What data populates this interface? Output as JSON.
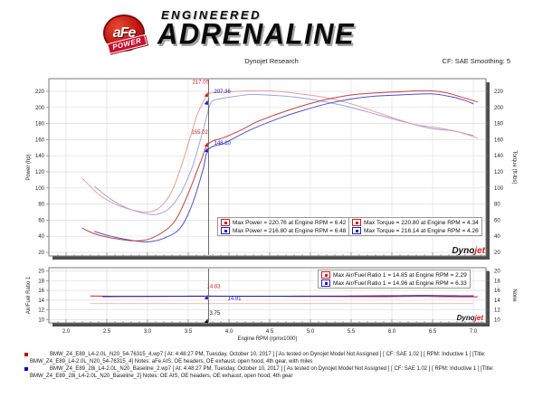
{
  "header": {
    "logo_brand": "aFe",
    "logo_sub": "POWER",
    "tagline_top": "ENGINEERED",
    "tagline_main": "ADRENALINE"
  },
  "toolbar": {
    "center_title": "Dynojet Research",
    "right_label": "CF: SAE Smoothing: 5"
  },
  "branding": {
    "dynojet_black": "Dyno",
    "dynojet_red": "jet",
    "dynojet_sub": "R E S E A R C H"
  },
  "colors": {
    "run1": "#cc2020",
    "run2": "#2020bb",
    "power_afe": "#c24040",
    "power_base": "#5050c8",
    "torque_afe": "#e59e9e",
    "torque_base": "#a0a4e0",
    "afr_ref": "#f0bcbc",
    "cursor": "#4a4a4a",
    "grid": "#dedede",
    "frame": "#7a7a7a",
    "shadow": "#4d4d4d"
  },
  "chart_data": [
    {
      "type": "line",
      "title": "",
      "xlabel": "Engine RPM (rpmx1000)",
      "ylabel_left": "Power (hp)",
      "ylabel_right": "Torque (ft-lbs)",
      "xlim": [
        1.8,
        7.15
      ],
      "ylim": [
        10,
        236
      ],
      "xticks": [
        2.0,
        2.5,
        3.0,
        3.5,
        4.0,
        4.5,
        5.0,
        5.5,
        6.0,
        6.5,
        7.0
      ],
      "yticks": [
        20,
        40,
        60,
        80,
        100,
        120,
        140,
        160,
        180,
        200,
        220
      ],
      "grid": true,
      "legend_position": "bottom-center",
      "series": [
        {
          "name": "torque_baseline",
          "color_key": "torque_base",
          "points": [
            [
              2.35,
              102
            ],
            [
              2.55,
              86
            ],
            [
              2.75,
              75
            ],
            [
              2.95,
              68.5
            ],
            [
              3.1,
              67
            ],
            [
              3.25,
              73
            ],
            [
              3.4,
              92
            ],
            [
              3.55,
              126
            ],
            [
              3.65,
              160
            ],
            [
              3.72,
              186
            ],
            [
              3.78,
              206
            ],
            [
              3.9,
              211
            ],
            [
              4.1,
              214
            ],
            [
              4.26,
              216.1
            ],
            [
              4.5,
              215.3
            ],
            [
              4.8,
              213
            ],
            [
              5.1,
              208.5
            ],
            [
              5.4,
              202.5
            ],
            [
              5.7,
              194.5
            ],
            [
              6.0,
              186
            ],
            [
              6.25,
              179.5
            ],
            [
              6.5,
              173.5
            ],
            [
              6.75,
              171
            ],
            [
              7.0,
              165
            ]
          ]
        },
        {
          "name": "torque_afe",
          "color_key": "torque_afe",
          "points": [
            [
              2.2,
              112
            ],
            [
              2.4,
              92
            ],
            [
              2.6,
              80
            ],
            [
              2.8,
              73
            ],
            [
              3.0,
              70
            ],
            [
              3.15,
              76
            ],
            [
              3.3,
              96
            ],
            [
              3.45,
              138
            ],
            [
              3.6,
              188
            ],
            [
              3.7,
              210
            ],
            [
              3.75,
              217.1
            ],
            [
              3.9,
              219
            ],
            [
              4.1,
              220
            ],
            [
              4.34,
              220.8
            ],
            [
              4.6,
              220
            ],
            [
              4.9,
              216.5
            ],
            [
              5.2,
              212
            ],
            [
              5.5,
              204.5
            ],
            [
              5.8,
              194.5
            ],
            [
              6.05,
              186
            ],
            [
              6.3,
              178.5
            ],
            [
              6.55,
              175
            ],
            [
              6.8,
              170
            ],
            [
              7.05,
              162
            ]
          ]
        },
        {
          "name": "power_baseline",
          "color_key": "power_base",
          "points": [
            [
              2.35,
              46
            ],
            [
              2.55,
              40
            ],
            [
              2.8,
              35
            ],
            [
              3.0,
              33
            ],
            [
              3.2,
              37.5
            ],
            [
              3.4,
              50
            ],
            [
              3.55,
              80
            ],
            [
              3.68,
              122
            ],
            [
              3.75,
              148
            ],
            [
              3.95,
              156
            ],
            [
              4.26,
              172
            ],
            [
              4.6,
              186
            ],
            [
              4.9,
              196
            ],
            [
              5.2,
              204.5
            ],
            [
              5.5,
              210.5
            ],
            [
              5.8,
              214
            ],
            [
              6.1,
              215.5
            ],
            [
              6.48,
              216.8
            ],
            [
              6.72,
              213.5
            ],
            [
              6.9,
              208.5
            ],
            [
              7.0,
              204.5
            ]
          ]
        },
        {
          "name": "power_afe",
          "color_key": "power_afe",
          "points": [
            [
              2.2,
              50
            ],
            [
              2.35,
              43
            ],
            [
              2.55,
              38
            ],
            [
              2.8,
              34.5
            ],
            [
              3.0,
              36
            ],
            [
              3.2,
              46
            ],
            [
              3.35,
              61
            ],
            [
              3.5,
              93
            ],
            [
              3.65,
              132
            ],
            [
              3.75,
              155
            ],
            [
              3.95,
              163
            ],
            [
              4.15,
              172
            ],
            [
              4.34,
              182
            ],
            [
              4.6,
              192
            ],
            [
              4.9,
              202
            ],
            [
              5.2,
              210
            ],
            [
              5.5,
              215.5
            ],
            [
              5.8,
              218
            ],
            [
              6.1,
              219.5
            ],
            [
              6.42,
              220.8
            ],
            [
              6.65,
              218.5
            ],
            [
              6.85,
              213
            ],
            [
              7.05,
              207
            ]
          ]
        }
      ],
      "cursor": {
        "rpm": 3.75,
        "readouts": [
          {
            "label": "217.05",
            "value": 217.05,
            "color_key": "run1"
          },
          {
            "label": "207.36",
            "value": 207.36,
            "color_key": "run2"
          },
          {
            "label": "155.02",
            "value": 155.02,
            "color_key": "run1"
          },
          {
            "label": "148.10",
            "value": 148.1,
            "color_key": "run2"
          }
        ]
      },
      "legends": [
        {
          "rows": [
            {
              "color_key": "run1",
              "text": "Max Power = 220.76 at Engine RPM = 6.42"
            },
            {
              "color_key": "run2",
              "text": "Max Power = 216.80 at Engine RPM = 6.48"
            }
          ]
        },
        {
          "rows": [
            {
              "color_key": "run1",
              "text": "Max Torque = 220.80 at Engine RPM = 4.34"
            },
            {
              "color_key": "run2",
              "text": "Max Torque = 216.14 at Engine RPM = 4.26"
            }
          ]
        }
      ]
    },
    {
      "type": "line",
      "title": "",
      "xlabel": "Engine RPM (rpmx1000)",
      "ylabel_left": "Air/Fuel Ratio 1",
      "ylabel_right": "None",
      "xlim": [
        1.8,
        7.15
      ],
      "ylim": [
        9.3,
        20.6
      ],
      "xticks": [
        2.0,
        2.5,
        3.0,
        3.5,
        4.0,
        4.5,
        5.0,
        5.5,
        6.0,
        6.5,
        7.0
      ],
      "yticks": [
        10,
        12,
        14,
        16,
        18,
        20
      ],
      "grid": true,
      "legend_position": "top-right",
      "series": [
        {
          "name": "afr_reference",
          "color_key": "afr_ref",
          "points": [
            [
              2.3,
              13.3
            ],
            [
              7.0,
              13.3
            ]
          ]
        },
        {
          "name": "afr_afe",
          "color_key": "run1",
          "points": [
            [
              2.3,
              14.85
            ],
            [
              2.6,
              14.8
            ],
            [
              3.0,
              14.8
            ],
            [
              3.4,
              14.82
            ],
            [
              3.75,
              14.83
            ],
            [
              4.2,
              14.8
            ],
            [
              4.8,
              14.78
            ],
            [
              5.4,
              14.75
            ],
            [
              5.9,
              14.73
            ],
            [
              6.33,
              14.8
            ],
            [
              6.7,
              14.72
            ],
            [
              7.05,
              14.7
            ]
          ]
        },
        {
          "name": "afr_baseline",
          "color_key": "run2",
          "points": [
            [
              2.45,
              14.72
            ],
            [
              2.8,
              14.77
            ],
            [
              3.2,
              14.79
            ],
            [
              3.75,
              14.81
            ],
            [
              4.3,
              14.82
            ],
            [
              4.9,
              14.83
            ],
            [
              5.5,
              14.86
            ],
            [
              5.95,
              14.9
            ],
            [
              6.33,
              14.96
            ],
            [
              6.7,
              14.9
            ],
            [
              7.0,
              14.88
            ]
          ]
        }
      ],
      "cursor": {
        "rpm": 3.75,
        "rpm_label": "3.75",
        "readouts": [
          {
            "label": "14.83",
            "value": 14.83,
            "color_key": "run1"
          },
          {
            "label": "14.81",
            "value": 14.81,
            "color_key": "run2"
          }
        ]
      },
      "legends": [
        {
          "rows": [
            {
              "color_key": "run1",
              "text": "Max Air/Fuel Ratio 1 = 14.85 at Engine RPM = 2.29"
            },
            {
              "color_key": "run2",
              "text": "Max Air/Fuel Ratio 1 = 14.96 at Engine RPM = 6.33"
            }
          ]
        }
      ]
    }
  ],
  "footer": {
    "entries": [
      {
        "bullet_color": "#cc0000",
        "text": "BMW_Z4_E89_L4-2.0L_N20_54-76315_4.wp7 [ At: 4:48:27 PM, Tuesday, October 10, 2017 ] [ As tested on Dynojet Model Not Assigned ] [ CF: SAE 1.02 ] [ RPM: Inductive 1 ] [Title: BMW_Z4_E89_L4-2.0L_N20_54-76315_4]  Notes: aFe AIS, OE headers, OE exhaust, open hood, 4th gear, with miles"
      },
      {
        "bullet_color": "#0000cc",
        "text": "BMW_Z4_E89_28i_L4-2.0L_N20_Baseline_2.wp7 [ At: 4:48:27 PM, Tuesday, October 10, 2017 ] [ As tested on Dynojet Model Not Assigned ] [ CF: SAE 1.02 ] [ RPM: Inductive 1 ] [Title: BMW_Z4_E89_28i_L4-2.0L_N20_Baseline_2]  Notes: OE AIS, OE headers, OE exhaust, open hood, 4th gear"
      }
    ]
  }
}
